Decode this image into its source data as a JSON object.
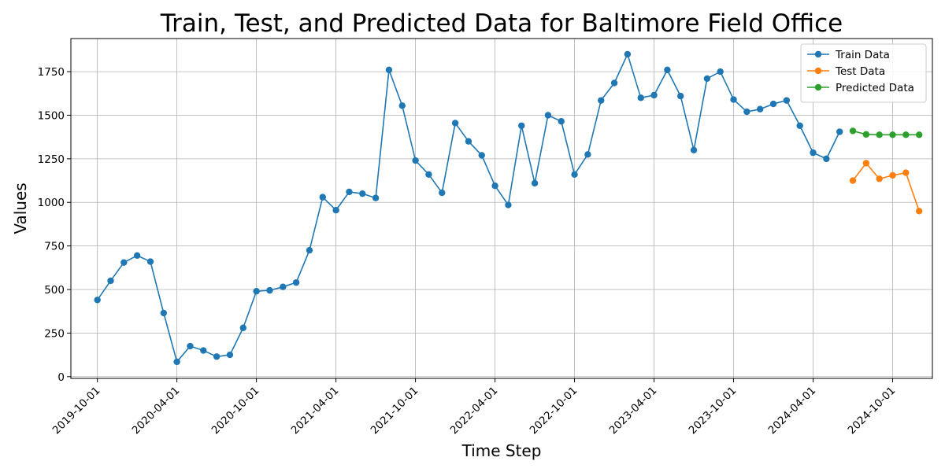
{
  "chart_data": {
    "type": "line",
    "title": "Train, Test, and Predicted Data for Baltimore Field Office",
    "xlabel": "Time Step",
    "ylabel": "Values",
    "x_tick_labels": [
      "2019-10-01",
      "2020-04-01",
      "2020-10-01",
      "2021-04-01",
      "2021-10-01",
      "2022-04-01",
      "2022-10-01",
      "2023-04-01",
      "2023-10-01",
      "2024-04-01",
      "2024-10-01"
    ],
    "y_ticks": [
      0,
      250,
      500,
      750,
      1000,
      1250,
      1500,
      1750
    ],
    "xlim": [
      "2019-08-01",
      "2025-01-01"
    ],
    "ylim": [
      -10,
      1940
    ],
    "grid": true,
    "legend_position": "top-right",
    "series": [
      {
        "name": "Train Data",
        "color": "#1f77b4",
        "x": [
          "2019-10-01",
          "2019-11-01",
          "2019-12-01",
          "2020-01-01",
          "2020-02-01",
          "2020-03-01",
          "2020-04-01",
          "2020-05-01",
          "2020-06-01",
          "2020-07-01",
          "2020-08-01",
          "2020-09-01",
          "2020-10-01",
          "2020-11-01",
          "2020-12-01",
          "2021-01-01",
          "2021-02-01",
          "2021-03-01",
          "2021-04-01",
          "2021-05-01",
          "2021-06-01",
          "2021-07-01",
          "2021-08-01",
          "2021-09-01",
          "2021-10-01",
          "2021-11-01",
          "2021-12-01",
          "2022-01-01",
          "2022-02-01",
          "2022-03-01",
          "2022-04-01",
          "2022-05-01",
          "2022-06-01",
          "2022-07-01",
          "2022-08-01",
          "2022-09-01",
          "2022-10-01",
          "2022-11-01",
          "2022-12-01",
          "2023-01-01",
          "2023-02-01",
          "2023-03-01",
          "2023-04-01",
          "2023-05-01",
          "2023-06-01",
          "2023-07-01",
          "2023-08-01",
          "2023-09-01",
          "2023-10-01",
          "2023-11-01",
          "2023-12-01",
          "2024-01-01",
          "2024-02-01",
          "2024-03-01",
          "2024-04-01",
          "2024-05-01",
          "2024-06-01"
        ],
        "values": [
          440,
          550,
          655,
          695,
          660,
          365,
          85,
          175,
          150,
          115,
          125,
          280,
          490,
          495,
          515,
          540,
          725,
          1030,
          955,
          1060,
          1050,
          1025,
          1760,
          1555,
          1240,
          1160,
          1055,
          1455,
          1350,
          1270,
          1095,
          985,
          1440,
          1110,
          1500,
          1465,
          1160,
          1275,
          1585,
          1685,
          1850,
          1600,
          1615,
          1760,
          1610,
          1300,
          1710,
          1750,
          1590,
          1520,
          1535,
          1565,
          1585,
          1440,
          1285,
          1250,
          1405
        ]
      },
      {
        "name": "Test Data",
        "color": "#ff7f0e",
        "x": [
          "2024-07-01",
          "2024-08-01",
          "2024-09-01",
          "2024-10-01",
          "2024-11-01",
          "2024-12-01"
        ],
        "values": [
          1125,
          1225,
          1135,
          1155,
          1170,
          950
        ]
      },
      {
        "name": "Predicted Data",
        "color": "#2ca02c",
        "x": [
          "2024-07-01",
          "2024-08-01",
          "2024-09-01",
          "2024-10-01",
          "2024-11-01",
          "2024-12-01"
        ],
        "values": [
          1410,
          1390,
          1388,
          1388,
          1388,
          1388
        ]
      }
    ]
  }
}
